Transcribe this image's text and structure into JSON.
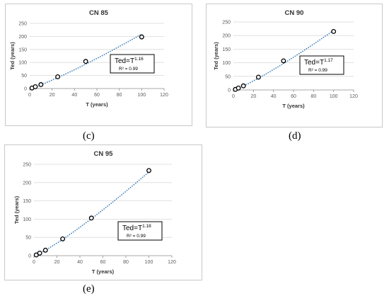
{
  "chart_data": [
    {
      "type": "scatter",
      "title": "CN 85",
      "xlabel": "T (years)",
      "ylabel": "Ted (years)",
      "xlim": [
        0,
        120
      ],
      "ylim": [
        0,
        250
      ],
      "xticks": [
        "0",
        "20",
        "40",
        "60",
        "80",
        "100",
        "120"
      ],
      "yticks": [
        "0",
        "50",
        "100",
        "150",
        "200",
        "250"
      ],
      "grid": "horizontal",
      "x": [
        2,
        5,
        10,
        25,
        50,
        100
      ],
      "y": [
        2,
        7,
        15,
        45,
        104,
        198
      ],
      "trendline": {
        "type": "power",
        "exponent": 1.16,
        "x_range": [
          2,
          100
        ]
      },
      "equation_base": "Ted=T",
      "equation_exp": "1.16",
      "r2_text": "R² = 0.99",
      "caption": "(c)"
    },
    {
      "type": "scatter",
      "title": "CN 90",
      "xlabel": "T (years)",
      "ylabel": "Ted (years)",
      "xlim": [
        0,
        120
      ],
      "ylim": [
        0,
        250
      ],
      "xticks": [
        "0",
        "20",
        "40",
        "60",
        "80",
        "100",
        "120"
      ],
      "yticks": [
        "0",
        "50",
        "100",
        "150",
        "200",
        "250"
      ],
      "grid": "horizontal",
      "x": [
        2,
        5,
        10,
        25,
        50,
        100
      ],
      "y": [
        2,
        7,
        15,
        47,
        107,
        215
      ],
      "trendline": {
        "type": "power",
        "exponent": 1.17,
        "x_range": [
          2,
          100
        ]
      },
      "equation_base": "Ted=T",
      "equation_exp": "1.17",
      "r2_text": "R² = 0.99",
      "caption": "(d)"
    },
    {
      "type": "scatter",
      "title": "CN 95",
      "xlabel": "T (years)",
      "ylabel": "Ted (years)",
      "xlim": [
        0,
        120
      ],
      "ylim": [
        0,
        250
      ],
      "xticks": [
        "0",
        "20",
        "40",
        "60",
        "80",
        "100",
        "120"
      ],
      "yticks": [
        "0",
        "50",
        "100",
        "150",
        "200",
        "250"
      ],
      "grid": "horizontal",
      "x": [
        2,
        5,
        10,
        25,
        50,
        100
      ],
      "y": [
        2,
        7,
        15,
        46,
        103,
        233
      ],
      "trendline": {
        "type": "power",
        "exponent": 1.18,
        "x_range": [
          2,
          100
        ]
      },
      "equation_base": "Ted=T",
      "equation_exp": "1.18",
      "r2_text": "R² = 0.99",
      "caption": "(e)"
    }
  ],
  "colors": {
    "trendline": "#2e75b6",
    "marker": "#000000",
    "grid": "#d9d9d9"
  }
}
